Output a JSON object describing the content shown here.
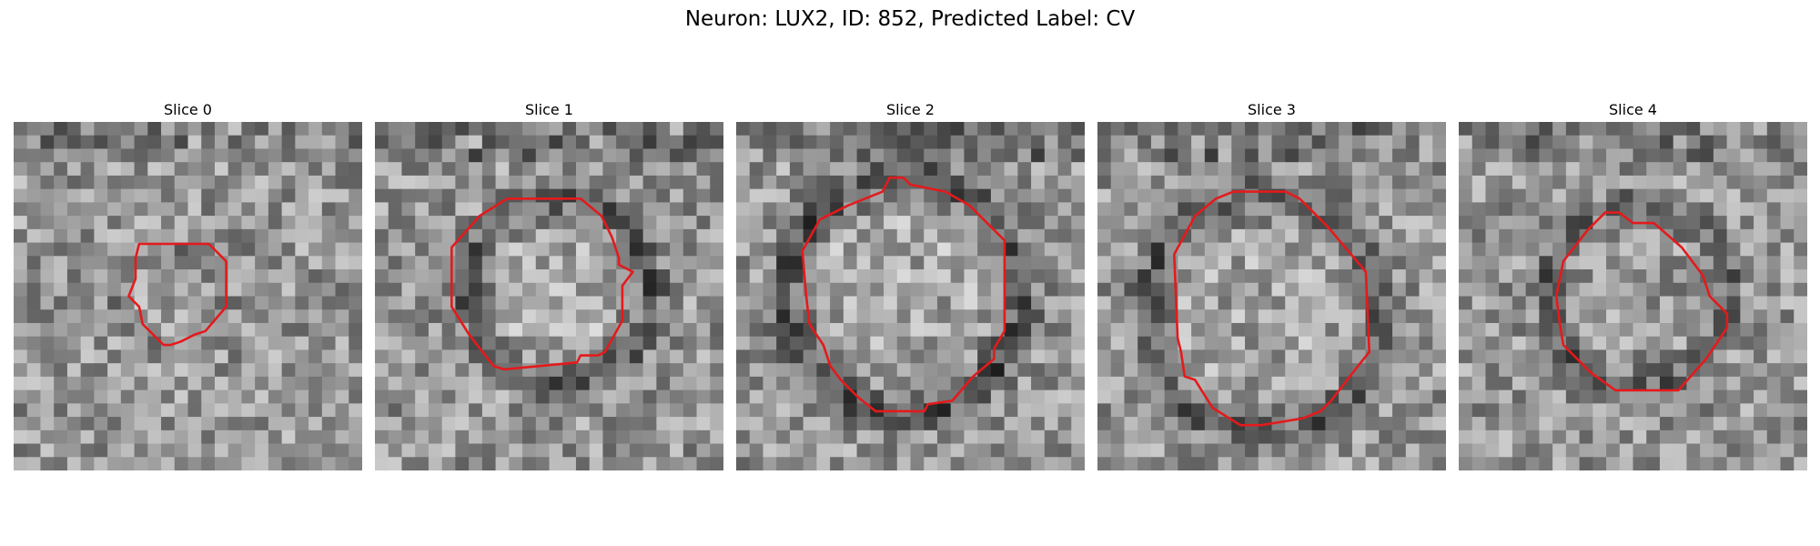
{
  "figure": {
    "title": "Neuron: LUX2, ID: 852, Predicted Label: CV",
    "contour_color": "#e41a1c"
  },
  "panels": [
    {
      "title": "Slice 0",
      "seed": 11,
      "contour": [
        [
          0.36,
          0.35
        ],
        [
          0.56,
          0.35
        ],
        [
          0.61,
          0.4
        ],
        [
          0.61,
          0.53
        ],
        [
          0.55,
          0.6
        ],
        [
          0.52,
          0.61
        ],
        [
          0.48,
          0.63
        ],
        [
          0.45,
          0.64
        ],
        [
          0.43,
          0.64
        ],
        [
          0.4,
          0.61
        ],
        [
          0.37,
          0.58
        ],
        [
          0.36,
          0.53
        ],
        [
          0.33,
          0.5
        ],
        [
          0.35,
          0.45
        ],
        [
          0.35,
          0.39
        ]
      ],
      "dark_ring": 0.55,
      "center_bright": 0.1
    },
    {
      "title": "Slice 1",
      "seed": 23,
      "contour": [
        [
          0.38,
          0.22
        ],
        [
          0.59,
          0.22
        ],
        [
          0.65,
          0.27
        ],
        [
          0.68,
          0.33
        ],
        [
          0.7,
          0.39
        ],
        [
          0.7,
          0.41
        ],
        [
          0.74,
          0.43
        ],
        [
          0.71,
          0.47
        ],
        [
          0.71,
          0.57
        ],
        [
          0.66,
          0.66
        ],
        [
          0.64,
          0.67
        ],
        [
          0.59,
          0.67
        ],
        [
          0.58,
          0.69
        ],
        [
          0.37,
          0.71
        ],
        [
          0.34,
          0.7
        ],
        [
          0.27,
          0.61
        ],
        [
          0.22,
          0.53
        ],
        [
          0.22,
          0.36
        ],
        [
          0.3,
          0.27
        ]
      ],
      "dark_ring": 0.85,
      "center_bright": 0.55
    },
    {
      "title": "Slice 2",
      "seed": 37,
      "contour": [
        [
          0.42,
          0.2
        ],
        [
          0.44,
          0.16
        ],
        [
          0.48,
          0.16
        ],
        [
          0.5,
          0.18
        ],
        [
          0.6,
          0.2
        ],
        [
          0.67,
          0.24
        ],
        [
          0.73,
          0.3
        ],
        [
          0.77,
          0.34
        ],
        [
          0.77,
          0.6
        ],
        [
          0.74,
          0.65
        ],
        [
          0.74,
          0.68
        ],
        [
          0.68,
          0.73
        ],
        [
          0.62,
          0.8
        ],
        [
          0.55,
          0.81
        ],
        [
          0.54,
          0.83
        ],
        [
          0.4,
          0.83
        ],
        [
          0.35,
          0.79
        ],
        [
          0.3,
          0.74
        ],
        [
          0.27,
          0.7
        ],
        [
          0.25,
          0.64
        ],
        [
          0.21,
          0.58
        ],
        [
          0.2,
          0.49
        ],
        [
          0.19,
          0.37
        ],
        [
          0.24,
          0.28
        ],
        [
          0.32,
          0.24
        ]
      ],
      "dark_ring": 0.9,
      "center_bright": 0.45
    },
    {
      "title": "Slice 3",
      "seed": 49,
      "contour": [
        [
          0.39,
          0.2
        ],
        [
          0.54,
          0.2
        ],
        [
          0.58,
          0.22
        ],
        [
          0.62,
          0.26
        ],
        [
          0.66,
          0.3
        ],
        [
          0.77,
          0.43
        ],
        [
          0.78,
          0.66
        ],
        [
          0.74,
          0.71
        ],
        [
          0.67,
          0.8
        ],
        [
          0.64,
          0.83
        ],
        [
          0.59,
          0.85
        ],
        [
          0.47,
          0.87
        ],
        [
          0.41,
          0.87
        ],
        [
          0.33,
          0.82
        ],
        [
          0.28,
          0.74
        ],
        [
          0.25,
          0.73
        ],
        [
          0.24,
          0.66
        ],
        [
          0.23,
          0.62
        ],
        [
          0.22,
          0.38
        ],
        [
          0.28,
          0.27
        ],
        [
          0.34,
          0.22
        ]
      ],
      "dark_ring": 0.75,
      "center_bright": 0.35
    },
    {
      "title": "Slice 4",
      "seed": 61,
      "contour": [
        [
          0.42,
          0.26
        ],
        [
          0.46,
          0.26
        ],
        [
          0.5,
          0.29
        ],
        [
          0.56,
          0.29
        ],
        [
          0.64,
          0.36
        ],
        [
          0.7,
          0.44
        ],
        [
          0.72,
          0.5
        ],
        [
          0.77,
          0.55
        ],
        [
          0.77,
          0.59
        ],
        [
          0.71,
          0.68
        ],
        [
          0.63,
          0.77
        ],
        [
          0.45,
          0.77
        ],
        [
          0.38,
          0.72
        ],
        [
          0.3,
          0.64
        ],
        [
          0.29,
          0.58
        ],
        [
          0.28,
          0.5
        ],
        [
          0.3,
          0.4
        ],
        [
          0.37,
          0.31
        ]
      ],
      "dark_ring": 0.7,
      "center_bright": 0.05
    }
  ]
}
